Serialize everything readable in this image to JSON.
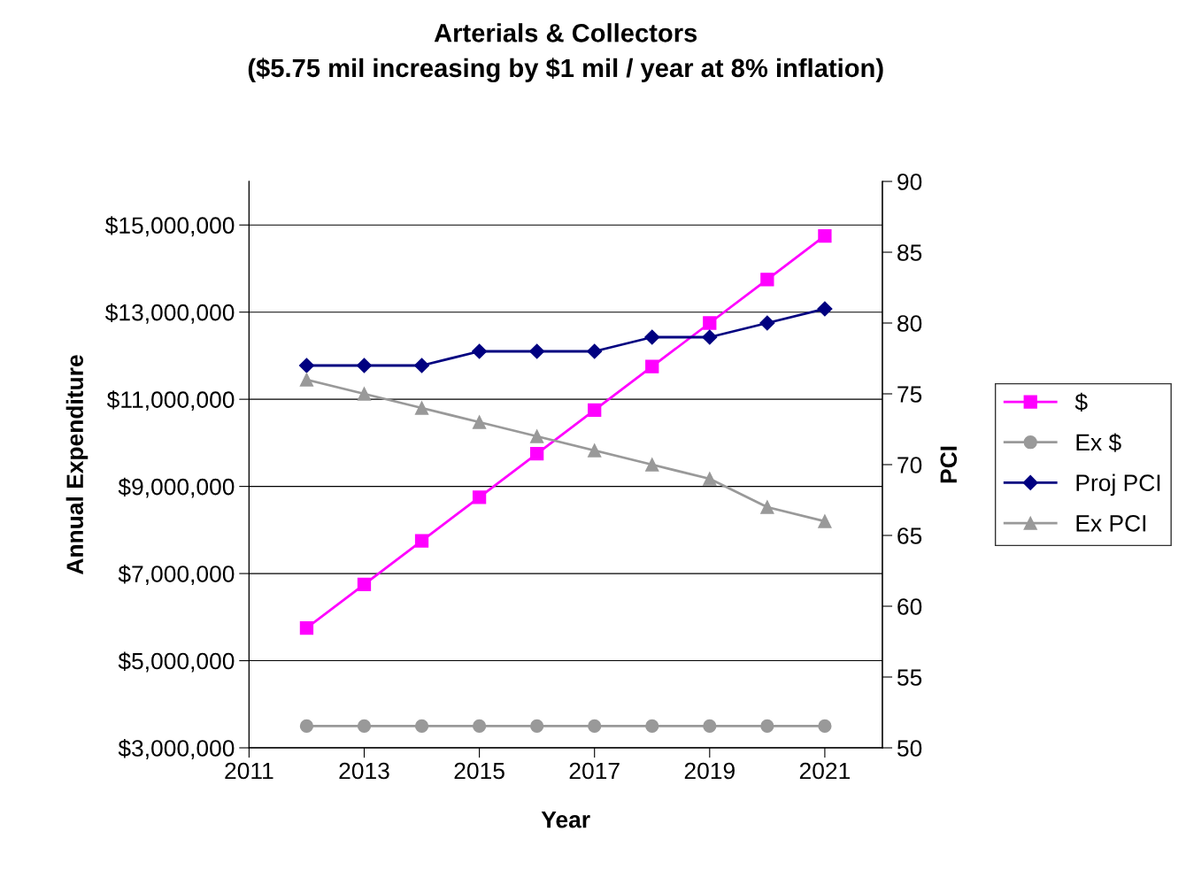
{
  "chart_data": {
    "type": "line",
    "title": "Arterials & Collectors\n($5.75 mil increasing by $1 mil / year at 8% inflation)",
    "xlabel": "Year",
    "ylabel": "Annual Expenditure",
    "y2label": "PCI",
    "x": [
      2012,
      2013,
      2014,
      2015,
      2016,
      2017,
      2018,
      2019,
      2020,
      2021
    ],
    "series": [
      {
        "name": "$",
        "color": "#ff00ff",
        "marker": "square",
        "values": [
          5750000,
          6750000,
          7750000,
          8750000,
          9750000,
          10750000,
          11750000,
          12750000,
          13750000,
          14750000
        ]
      },
      {
        "name": "Ex $",
        "color": "#999999",
        "marker": "circle",
        "values": [
          3500000,
          3500000,
          3500000,
          3500000,
          3500000,
          3500000,
          3500000,
          3500000,
          3500000,
          3500000
        ]
      },
      {
        "name": "Proj PCI",
        "color": "#000080",
        "marker": "diamond",
        "axis": "y2",
        "values": [
          77,
          77,
          77,
          78,
          78,
          78,
          79,
          79,
          80,
          81
        ]
      },
      {
        "name": "Ex PCI",
        "color": "#999999",
        "marker": "triangle",
        "axis": "y2",
        "values": [
          76,
          75,
          74,
          73,
          72,
          71,
          70,
          69,
          67,
          66
        ]
      }
    ],
    "xlim": [
      2011,
      2022
    ],
    "xticks": [
      2011,
      2013,
      2015,
      2017,
      2019,
      2021
    ],
    "ylim": [
      3000000,
      16000000
    ],
    "yticks": [
      {
        "value": 3000000,
        "label": "$3,000,000"
      },
      {
        "value": 5000000,
        "label": "$5,000,000"
      },
      {
        "value": 7000000,
        "label": "$7,000,000"
      },
      {
        "value": 9000000,
        "label": "$9,000,000"
      },
      {
        "value": 11000000,
        "label": "$11,000,000"
      },
      {
        "value": 13000000,
        "label": "$13,000,000"
      },
      {
        "value": 15000000,
        "label": "$15,000,000"
      }
    ],
    "y2lim": [
      50,
      90
    ],
    "y2ticks": [
      50,
      55,
      60,
      65,
      70,
      75,
      80,
      85,
      90
    ],
    "grid": "y",
    "legend": "right",
    "line_style": "solid"
  }
}
